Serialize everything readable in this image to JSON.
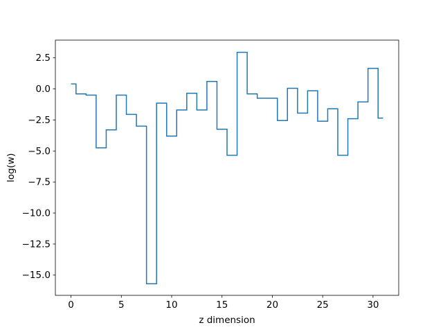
{
  "chart_data": {
    "type": "line",
    "drawstyle": "steps-mid",
    "xlabel": "z dimension",
    "ylabel": "log(w)",
    "xlim": [
      -1.55,
      32.55
    ],
    "ylim": [
      -16.63,
      3.93
    ],
    "xticks": [
      0,
      5,
      10,
      15,
      20,
      25,
      30
    ],
    "xtick_labels": [
      "0",
      "5",
      "10",
      "15",
      "20",
      "25",
      "30"
    ],
    "yticks": [
      2.5,
      0.0,
      -2.5,
      -5.0,
      -7.5,
      -10.0,
      -12.5,
      -15.0
    ],
    "ytick_labels": [
      "2.5",
      "0.0",
      "−2.5",
      "−5.0",
      "−7.5",
      "−10.0",
      "−12.5",
      "−15.0"
    ],
    "grid": false,
    "line_color": "#1f77b4",
    "x": [
      0,
      1,
      2,
      3,
      4,
      5,
      6,
      7,
      8,
      9,
      10,
      11,
      12,
      13,
      14,
      15,
      16,
      17,
      18,
      19,
      20,
      21,
      22,
      23,
      24,
      25,
      26,
      27,
      28,
      29,
      30,
      31
    ],
    "values": [
      0.4,
      -0.4,
      -0.5,
      -4.75,
      -3.3,
      -0.5,
      -2.05,
      -3.0,
      -15.7,
      -1.15,
      -3.8,
      -1.7,
      -0.35,
      -1.7,
      0.6,
      -3.25,
      -5.35,
      2.95,
      -0.4,
      -0.75,
      -0.75,
      -2.55,
      0.05,
      -1.95,
      -0.15,
      -2.6,
      -1.6,
      -5.35,
      -2.4,
      -1.05,
      1.65,
      -2.35
    ]
  }
}
